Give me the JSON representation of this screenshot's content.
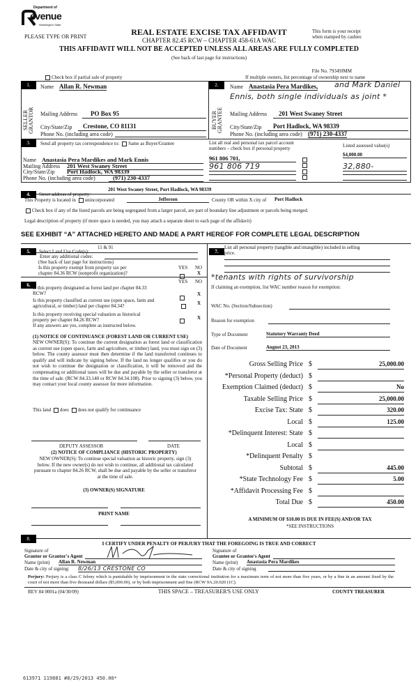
{
  "header": {
    "logo_text": [
      "Department of",
      "Revenue",
      "Washington State"
    ],
    "please_type": "PLEASE TYPE OR PRINT",
    "title": "REAL ESTATE EXCISE TAX AFFIDAVIT",
    "chapter": "CHAPTER 82.45 RCW – CHAPTER 458-61A WAC",
    "receipt": [
      "This form is your receipt",
      "when stamped by cashier."
    ],
    "warning": "THIS AFFIDAVIT WILL NOT BE ACCEPTED UNLESS ALL AREAS ARE FULLY COMPLETED",
    "see_back": "(See back of last page for instructions)",
    "file_no": "File No. 79349JMM",
    "partial_sale": "Check box if partial sale of property",
    "multiple_owners": "If multiple owners, list percentage of ownership next to name"
  },
  "seller": {
    "num": "1.",
    "side": "SELLER GRANTOR",
    "name_label": "Name",
    "name": "Allan R. Newman",
    "mailing_label": "Mailing Address",
    "mailing": "PO Box 95",
    "city_label": "City/State/Zip",
    "city": "Crestone, CO 81131",
    "phone_label": "Phone No. (including area code)",
    "phone": ""
  },
  "buyer": {
    "num": "2.",
    "side": "BUYER GRANTEE",
    "name_label": "Name",
    "name": "Anastasia Pera Mardikes,",
    "handwritten_1": "and Mark Daniel",
    "handwritten_2": "Ennis, both single individuals as joint *",
    "mailing_label": "Mailing Address",
    "mailing": "201 West Swaney Street",
    "city_label": "City/State/Zip",
    "city": "Port Hadlock, WA 98339",
    "phone_label": "Phone No. (including area code)",
    "phone": "(971) 230-4337"
  },
  "section3": {
    "num": "3.",
    "send_label": "Send all property tax correspondence to:",
    "same_as": "Same as Buyer/Grantee",
    "parcel_label": [
      "List all real and personal tax parcel account",
      "numbers – check box if personal property"
    ],
    "assessed_label": "Listed assessed value(s)",
    "name_label": "Name",
    "name": "Anastasia Pera Mardikes and Mark Ennis",
    "mailing_label": "Mailing Address",
    "mailing": "201 West Swaney Street",
    "city_label": "City/State/Zip",
    "city": "Port Hadlock, WA 98339",
    "phone_label": "Phone No. (including area code)",
    "phone": "(971) 230-4337",
    "parcels": [
      {
        "number": "961 806 701,",
        "value": "$4,000.00"
      },
      {
        "number": "961 806 719",
        "value": "32,880-"
      },
      {
        "number": "",
        "value": ""
      },
      {
        "number": "",
        "value": ""
      }
    ]
  },
  "section4": {
    "num": "4.",
    "street_label": "Street address of property:",
    "street": "201 West Swaney Street, Port Hadlock, WA  98339",
    "located_label": "This Property is located in",
    "unincorporated": "unincorporated",
    "county": "Jefferson",
    "county_or": "County OR  within X city of",
    "city": "Port Hadlock",
    "segregated": "Check box if any of the listed parcels are being segregated from a larger parcel, are part of boundary line adjustment or parcels being merged.",
    "legal_label": "Legal description of property (if more space is needed, you may attach a separate sheet to each page of the affidavit)",
    "exhibit": "SEE EXHIBIT “A” ATTACHED HERETO AND MADE A PART HEREOF FOR COMPLETE LEGAL DESCRIPTION"
  },
  "section5": {
    "num": "5.",
    "land_use_label": "Select Land Use Code(s):",
    "land_use": "11 & 91",
    "additional": "Enter any additional codes:",
    "see_back": "(See back of last page for instructions)",
    "exempt_q": [
      "Is this property exempt from property tax per",
      "chapter 84.36 RCW (nonprofit organization)?"
    ],
    "yes": "YES",
    "no": "NO",
    "answer": "X"
  },
  "section6": {
    "num": "6.",
    "yes": "YES",
    "no": "NO",
    "questions": [
      {
        "text": [
          "Is this property designated as forest land per chapter 84.33",
          "RCW?"
        ],
        "answer": "X"
      },
      {
        "text": [
          "Is this property classified as current use (open space, farm and",
          "agricultural, or timber) land per chapter 84.34?"
        ],
        "answer": "X"
      },
      {
        "text": [
          "Is this property receiving special valuation as historical",
          "property per chapter 84.26 RCW?"
        ],
        "answer": "X"
      }
    ],
    "if_yes": "If any answers are yes, complete as instructed below.",
    "notice1_title": "(1) NOTICE OF CONTINUANCE (FOREST LAND OR CURRENT USE)",
    "notice1_body": "NEW OWNER(S): To continue the current designation as forest land or classification as current use (open space, farm and agriculture, or timber) land, you must sign on (3) below.  The county assessor must then determine if the land transferred continues to qualify and will indicate by signing below. If the land no longer qualifies or you do not wish to continue the designation or classification, it will be removed and the compensating or additional taxes will be due and payable by the seller or transferor at the time of sale.  (RCW 84.33.140 or RCW 84.34.108). Prior to signing (3) below, you may contact your local county assessor for more information.",
    "this_land": "This land",
    "does": "does",
    "does_not": "does not  qualify for continuance",
    "deputy": "DEPUTY ASSESSOR",
    "date": "DATE",
    "notice2_title": "(2) NOTICE OF COMPLIANCE (HISTORIC PROPERTY)",
    "notice2_body": "NEW OWNER(S):  To continue special valuation as historic property, sign (3) below.  If the new owner(s) do not wish to continue, all additional tax calculated pursuant to chapter 84.26 RCW, shall be due and payable by the seller or transferor at the time of sale.",
    "owner_sig": "(3)  OWNER(S) SIGNATURE",
    "print_name": "PRINT NAME"
  },
  "section7": {
    "num": "7.",
    "personal_label": "List all personal property (tangible and intangible) included in selling",
    "personal_label2": "price.",
    "handwritten": "*tenants with rights of survivorship",
    "claiming": "If claiming an exemption, list WAC number reason for exemption:",
    "wac_label": "WAC No. (Section/Subsection)",
    "wac": "",
    "reason_label": "Reason for exemption",
    "reason": "",
    "type_label": "Type of Document",
    "type": "Statutory Warranty Deed",
    "date_label": "Date of Document",
    "date": "August 23, 2013",
    "amounts": [
      {
        "label": "Gross Selling Price",
        "value": "25,000.00"
      },
      {
        "label": "*Personal Property (deduct)",
        "value": ""
      },
      {
        "label": "Exemption Claimed (deduct)",
        "value": "No"
      },
      {
        "label": "Taxable Selling Price",
        "value": "25,000.00"
      },
      {
        "label": "Excise Tax:  State",
        "value": "320.00"
      },
      {
        "label": "Local",
        "value": "125.00"
      },
      {
        "label": "*Delinquent Interest:  State",
        "value": ""
      },
      {
        "label": "Local",
        "value": ""
      },
      {
        "label": "*Delinquent Penalty",
        "value": ""
      },
      {
        "label": "Subtotal",
        "value": "445.00"
      },
      {
        "label": "*State Technology Fee",
        "value": "5.00"
      },
      {
        "label": "*Affidavit Processing Fee",
        "value": ""
      },
      {
        "label": "Total Due",
        "value": "450.00"
      }
    ],
    "dollar": "$",
    "minimum": "A MINIMUM OF $10.00 IS DUE IN FEE(S) AND/OR TAX",
    "see_instr": "*SEE INSTRUCTIONS"
  },
  "section8": {
    "num": "8.",
    "certify": "I CERTIFY UNDER PENALTY OF PERJURY THAT THE FOREGOING IS TRUE AND CORRECT",
    "sig_of": "Signature of",
    "grantor_agent": "Grantor or Grantor's Agent",
    "grantee_agent": "Grantee or Grantee's Agent",
    "name_print": "Name (print)",
    "grantor_name": "Allan R. Newman",
    "grantee_name": "Anastasia Pera Mardikes",
    "date_city": "Date & city of signing:",
    "date_city2": "Date & city of signing",
    "grantor_date": "8/26/13   CRESTONE CO",
    "grantee_date": "",
    "perjury_bold": "Perjury:",
    "perjury": "Perjury is a class C felony which is punishable by imprisonment in the state correctional institution for a maximum term of not more than five years, or by a fine in an amount fixed by the court of not more than five thousand dollars ($5,000.00), or by both imprisonment and fine (RCW 9A.20.020 (1C)."
  },
  "footer": {
    "rev": "REV 84 0001a (04/30/09)",
    "treasurer_space": "THIS SPACE – TREASURER'S USE ONLY",
    "county_treasurer": "COUNTY TREASURER",
    "stamp": "613971 119881 #8/29/2013 450.00*"
  }
}
